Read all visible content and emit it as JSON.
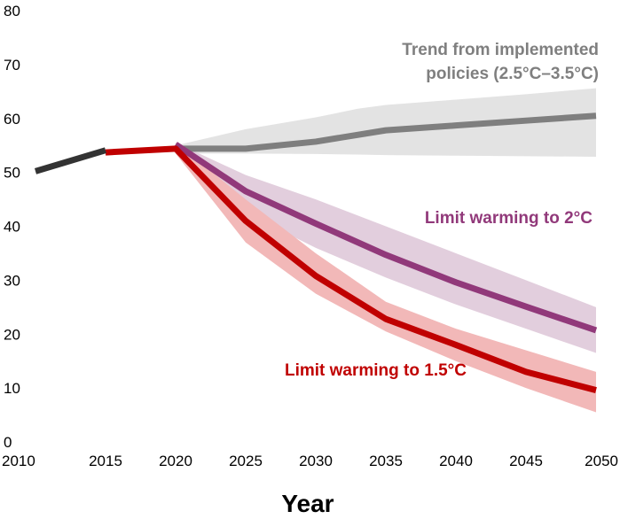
{
  "chart_data": {
    "type": "line",
    "title": "",
    "xlabel": "Year",
    "ylabel": "",
    "xlim": [
      2010,
      2050
    ],
    "ylim": [
      0,
      80
    ],
    "x_ticks": [
      2010,
      2015,
      2020,
      2025,
      2030,
      2035,
      2040,
      2045,
      2050
    ],
    "y_ticks": [
      0,
      10,
      20,
      30,
      40,
      50,
      60,
      70,
      80
    ],
    "grid": false,
    "series": [
      {
        "color": "#333333",
        "x": [
          2010,
          2015
        ],
        "values": [
          50.2,
          54.1
        ]
      },
      {
        "name": "Trend from implemented policies (2.5°C–3.5°C)",
        "color": "#7f7f7f",
        "band_color": "#e3e3e3",
        "x": [
          2020,
          2025,
          2030,
          2035,
          2040,
          2045,
          2050
        ],
        "values": [
          54.4,
          54.4,
          55.7,
          57.8,
          58.7,
          59.6,
          60.5
        ],
        "band_x": [
          2020,
          2025,
          2030,
          2033,
          2035,
          2040,
          2045,
          2050
        ],
        "band_low": [
          53.5,
          53.5,
          53.4,
          53.3,
          53.2,
          53.1,
          53.0,
          52.9
        ],
        "band_high": [
          55.0,
          58.0,
          60.2,
          61.8,
          62.5,
          63.5,
          64.5,
          65.6
        ]
      },
      {
        "name": "Limit warming to 2°C",
        "color": "#91397a",
        "band_color": "#e2cedd",
        "x": [
          2020,
          2025,
          2030,
          2035,
          2040,
          2045,
          2050
        ],
        "values": [
          55.2,
          46.5,
          40.5,
          34.7,
          29.6,
          25.1,
          20.7
        ],
        "band_x": [
          2020,
          2025,
          2030,
          2035,
          2040,
          2045,
          2050
        ],
        "band_low": [
          54.5,
          42.5,
          36.0,
          30.5,
          25.5,
          21.0,
          16.5
        ],
        "band_high": [
          55.5,
          49.5,
          45.0,
          40.0,
          35.0,
          30.0,
          25.0
        ]
      },
      {
        "name": "Limit warming to 1.5°C",
        "color": "#c00000",
        "band_color": "#f2b8b8",
        "x": [
          2015,
          2020,
          2025,
          2030,
          2035,
          2040,
          2045,
          2050
        ],
        "values": [
          53.7,
          54.4,
          41.0,
          30.8,
          22.8,
          18.0,
          13.0,
          9.6
        ],
        "band_x": [
          2020,
          2025,
          2030,
          2035,
          2040,
          2045,
          2050
        ],
        "band_low": [
          53.5,
          37.0,
          27.5,
          20.5,
          15.0,
          10.0,
          5.5
        ],
        "band_high": [
          55.5,
          45.0,
          35.0,
          26.0,
          21.0,
          17.0,
          13.0
        ]
      }
    ]
  },
  "annotations": {
    "trend_line1": "Trend from implemented",
    "trend_line2": "policies (2.5°C–3.5°C)",
    "two_degree": "Limit warming to 2°C",
    "one_five_degree": "Limit warming to 1.5°C"
  },
  "colors": {
    "trend_text": "#7f7f7f",
    "two_degree_text": "#91397a",
    "one_five_text": "#c00000",
    "history": "#333333"
  }
}
